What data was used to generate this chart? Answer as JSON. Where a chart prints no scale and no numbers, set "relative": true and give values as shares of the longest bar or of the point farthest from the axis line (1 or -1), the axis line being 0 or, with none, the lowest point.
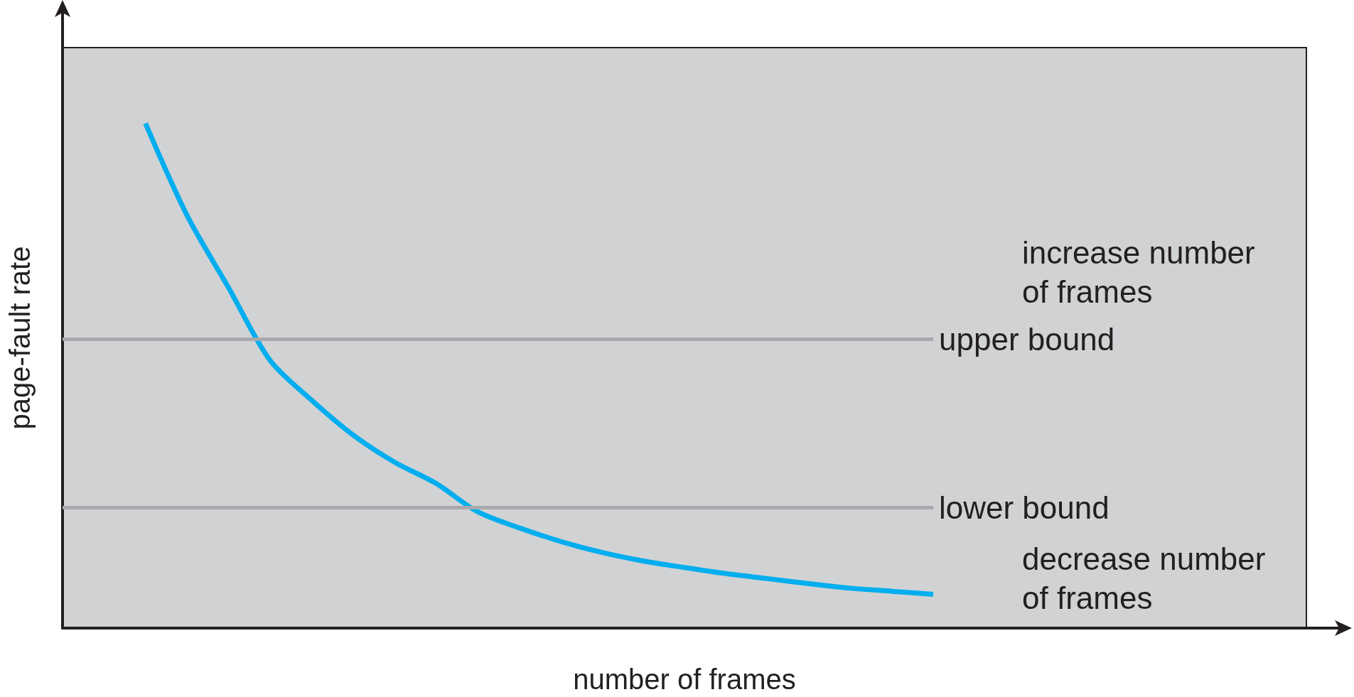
{
  "chart_data": {
    "type": "line",
    "relative": true,
    "xlabel": "number of frames",
    "ylabel": "page-fault rate",
    "marker": "none",
    "color": "#00aeef",
    "categories": [
      null,
      null,
      null,
      null,
      null,
      null,
      null,
      null,
      null,
      null,
      null,
      null,
      null,
      null,
      null,
      null,
      null,
      null,
      null,
      null,
      null,
      null,
      null,
      null,
      null,
      null,
      null,
      null,
      null,
      null,
      null
    ],
    "values": [
      null,
      null,
      1.0,
      0.818,
      0.675,
      0.531,
      0.452,
      0.383,
      0.329,
      0.287,
      0.231,
      0.199,
      0.172,
      0.15,
      0.133,
      0.12,
      0.108,
      0.098,
      0.088,
      0.079,
      0.073,
      0.067,
      null,
      null,
      null,
      null,
      null,
      null,
      null,
      null,
      null
    ],
    "ref_lines": [
      {
        "axis": "y",
        "value": 0.572,
        "label": "upper bound",
        "color": "#a7a9ac"
      },
      {
        "axis": "y",
        "value": 0.239,
        "label": "lower bound",
        "color": "#a7a9ac"
      }
    ],
    "annotations": [
      "increase number of frames",
      "decrease number of frames"
    ]
  }
}
